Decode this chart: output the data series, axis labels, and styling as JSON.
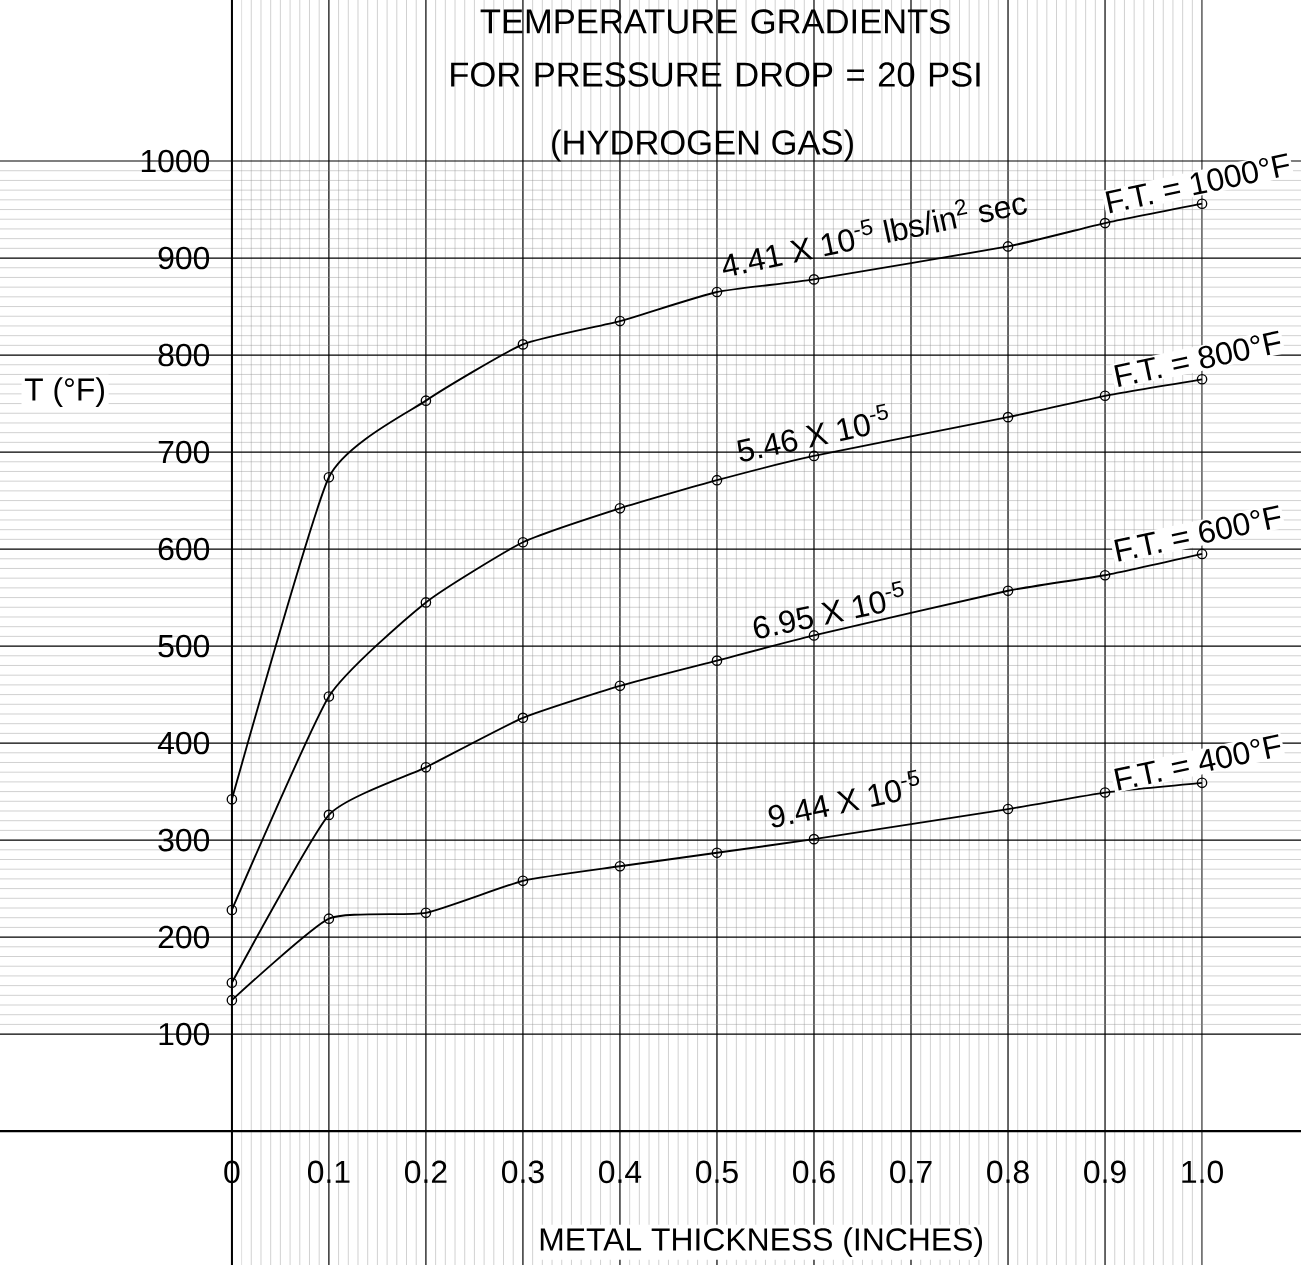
{
  "chart_data": {
    "type": "line",
    "title": "TEMPERATURE GRADIENTS FOR PRESSURE DROP = 20 PSI",
    "subtitle": "(HYDROGEN GAS)",
    "xlabel": "METAL THICKNESS (INCHES)",
    "ylabel": "T (°F)",
    "x": [
      0,
      0.1,
      0.2,
      0.3,
      0.4,
      0.5,
      0.6,
      0.8,
      0.9,
      1.0
    ],
    "series": [
      {
        "name": "F.T. = 1000°F",
        "color": "#000000",
        "values": [
          342,
          674,
          753,
          811,
          835,
          865,
          878,
          912,
          936,
          956
        ]
      },
      {
        "name": "F.T. = 800°F",
        "color": "#000000",
        "values": [
          228,
          448,
          545,
          607,
          642,
          671,
          696,
          736,
          758,
          775
        ]
      },
      {
        "name": "F.T. = 600°F",
        "color": "#000000",
        "values": [
          153,
          326,
          375,
          426,
          459,
          485,
          511,
          557,
          573,
          595
        ]
      },
      {
        "name": "F.T. = 400°F",
        "color": "#000000",
        "values": [
          135,
          219,
          225,
          258,
          273,
          287,
          301,
          332,
          349,
          359
        ]
      }
    ],
    "annotations": [
      "4.41 X 10$^{-5}$ lbs/in$^{2}$ sec",
      "5.46 X 10$^{-5}$",
      "6.95 X 10$^{-5}$",
      "9.44 X 10$^{-5}$"
    ],
    "xlim": [
      -0.239,
      1.102
    ],
    "ylim": [
      -138,
      1166
    ],
    "xticks": [
      0,
      0.1,
      0.2,
      0.3,
      0.4,
      0.5,
      0.6,
      0.7,
      0.8,
      0.9,
      {
        "value": 1.0,
        "label": "1.0"
      }
    ],
    "yticks": [
      100,
      200,
      300,
      400,
      500,
      600,
      700,
      800,
      900,
      1000
    ],
    "grid": true,
    "marker": "circle",
    "line_style": "solid"
  }
}
